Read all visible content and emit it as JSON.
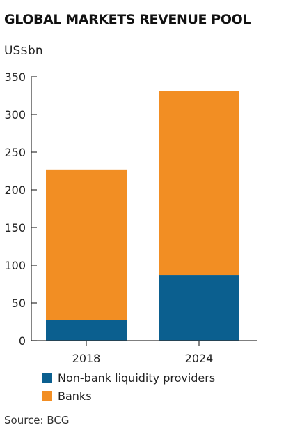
{
  "title": "GLOBAL MARKETS REVENUE POOL",
  "unit_label": "US$bn",
  "source": "Source: BCG",
  "colors": {
    "non_bank": "#0b5f8f",
    "banks": "#f28e23",
    "axis": "#333333"
  },
  "legend": {
    "items": [
      {
        "label": "Non-bank liquidity providers",
        "color": "#0b5f8f"
      },
      {
        "label": "Banks",
        "color": "#f28e23"
      }
    ]
  },
  "chart_data": {
    "type": "bar",
    "stacked": true,
    "title": "GLOBAL MARKETS REVENUE POOL",
    "ylabel": "US$bn",
    "ylim": [
      0,
      350
    ],
    "yticks": [
      0,
      50,
      100,
      150,
      200,
      250,
      300,
      350
    ],
    "categories": [
      "2018",
      "2024"
    ],
    "series": [
      {
        "name": "Non-bank liquidity providers",
        "values": [
          27,
          87
        ],
        "color": "#0b5f8f"
      },
      {
        "name": "Banks",
        "values": [
          200,
          244
        ],
        "color": "#f28e23"
      }
    ],
    "legend_position": "bottom",
    "grid": false
  }
}
